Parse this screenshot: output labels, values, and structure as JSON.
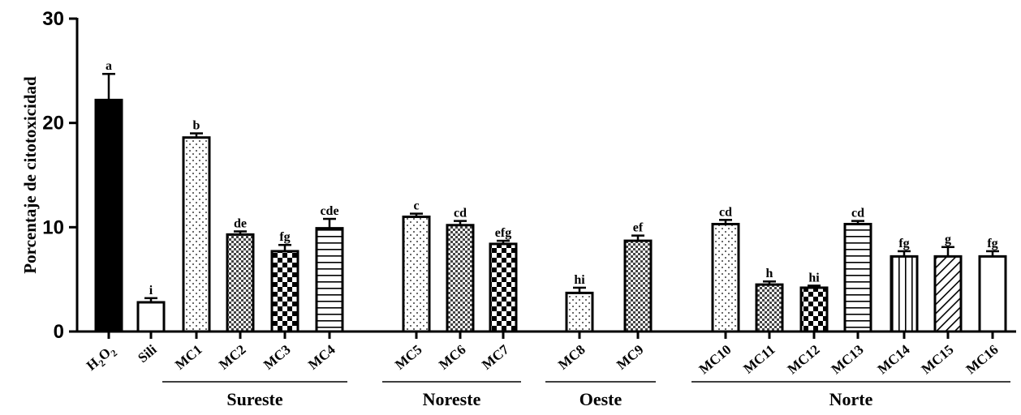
{
  "chart_data": {
    "type": "bar",
    "title": "",
    "xlabel": "",
    "ylabel": "Porcentaje de citotoxicidad",
    "ylim": [
      0,
      30
    ],
    "yticks": [
      "0",
      "10",
      "20",
      "30"
    ],
    "grid": false,
    "legend": "none",
    "categories": [
      "H2O2",
      "Sili",
      "MC1",
      "MC2",
      "MC3",
      "MC4",
      "MC5",
      "MC6",
      "MC7",
      "MC8",
      "MC9",
      "MC10",
      "MC11",
      "MC12",
      "MC13",
      "MC14",
      "MC15",
      "MC16"
    ],
    "values": [
      22.2,
      2.8,
      18.6,
      9.3,
      7.7,
      9.9,
      11.0,
      10.2,
      8.4,
      3.7,
      8.7,
      10.3,
      4.5,
      4.2,
      10.3,
      7.2,
      7.2,
      7.2
    ],
    "errors": [
      2.5,
      0.4,
      0.4,
      0.3,
      0.6,
      0.9,
      0.3,
      0.4,
      0.3,
      0.5,
      0.5,
      0.4,
      0.3,
      0.2,
      0.3,
      0.5,
      0.9,
      0.5
    ],
    "significance": [
      "a",
      "i",
      "b",
      "de",
      "fg",
      "cde",
      "c",
      "cd",
      "efg",
      "hi",
      "ef",
      "cd",
      "h",
      "hi",
      "cd",
      "fg",
      "g",
      "fg"
    ],
    "patterns": [
      "solid-black",
      "white",
      "sparse-dots",
      "fine-checker",
      "coarse-checker",
      "horizontal-lines",
      "sparse-dots",
      "fine-checker",
      "coarse-checker",
      "sparse-dots",
      "fine-checker",
      "sparse-dots",
      "fine-checker",
      "coarse-checker",
      "horizontal-lines",
      "vertical-lines",
      "diagonal-lines",
      "white"
    ],
    "groups": [
      {
        "name": "Sureste",
        "members": [
          "MC1",
          "MC2",
          "MC3",
          "MC4"
        ]
      },
      {
        "name": "Noreste",
        "members": [
          "MC5",
          "MC6",
          "MC7"
        ]
      },
      {
        "name": "Oeste",
        "members": [
          "MC8",
          "MC9"
        ]
      },
      {
        "name": "Norte",
        "members": [
          "MC10",
          "MC11",
          "MC12",
          "MC13",
          "MC14",
          "MC15",
          "MC16"
        ]
      }
    ]
  }
}
